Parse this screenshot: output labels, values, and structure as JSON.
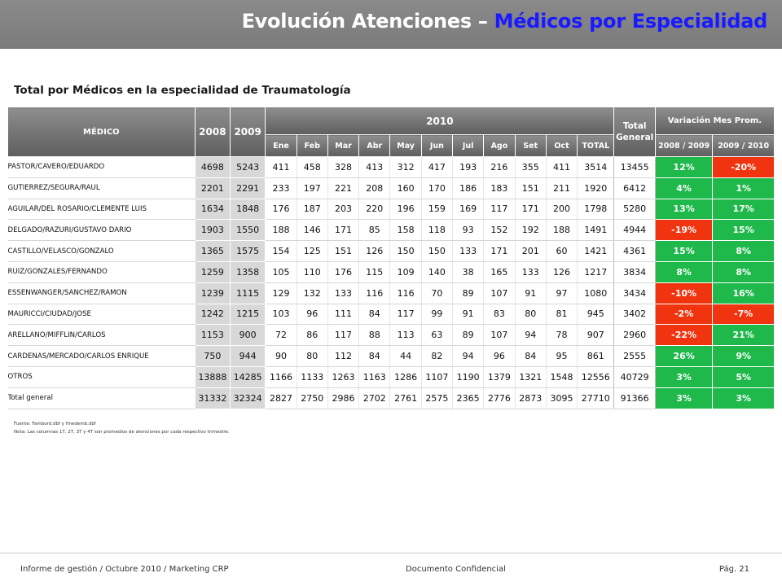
{
  "header": {
    "title_part1": "Evolución Atenciones – ",
    "title_part2": "Médicos por Especialidad"
  },
  "subtitle": "Total por Médicos en la especialidad de Traumatología",
  "table": {
    "col_medico": "MÉDICO",
    "col_2008": "2008",
    "col_2009": "2009",
    "col_2010": "2010",
    "col_total_general": "Total General",
    "col_variacion": "Variación Mes Prom.",
    "col_var1": "2008 / 2009",
    "col_var2": "2009 / 2010",
    "col_total": "TOTAL",
    "months": [
      "Ene",
      "Feb",
      "Mar",
      "Abr",
      "May",
      "Jun",
      "Jul",
      "Ago",
      "Set",
      "Oct"
    ],
    "rows": [
      {
        "medico": "PASTOR/CAVERO/EDUARDO",
        "y2008": "4698",
        "y2009": "5243",
        "months": [
          "411",
          "458",
          "328",
          "413",
          "312",
          "417",
          "193",
          "216",
          "355",
          "411"
        ],
        "total": "3514",
        "total_general": "13455",
        "var1": "12%",
        "var2": "-20%"
      },
      {
        "medico": "GUTIERREZ/SEGURA/RAUL",
        "y2008": "2201",
        "y2009": "2291",
        "months": [
          "233",
          "197",
          "221",
          "208",
          "160",
          "170",
          "186",
          "183",
          "151",
          "211"
        ],
        "total": "1920",
        "total_general": "6412",
        "var1": "4%",
        "var2": "1%"
      },
      {
        "medico": "AGUILAR/DEL ROSARIO/CLEMENTE LUIS",
        "y2008": "1634",
        "y2009": "1848",
        "months": [
          "176",
          "187",
          "203",
          "220",
          "196",
          "159",
          "169",
          "117",
          "171",
          "200"
        ],
        "total": "1798",
        "total_general": "5280",
        "var1": "13%",
        "var2": "17%"
      },
      {
        "medico": "DELGADO/RAZURI/GUSTAVO DARIO",
        "y2008": "1903",
        "y2009": "1550",
        "months": [
          "188",
          "146",
          "171",
          "85",
          "158",
          "118",
          "93",
          "152",
          "192",
          "188"
        ],
        "total": "1491",
        "total_general": "4944",
        "var1": "-19%",
        "var2": "15%"
      },
      {
        "medico": "CASTILLO/VELASCO/GONZALO",
        "y2008": "1365",
        "y2009": "1575",
        "months": [
          "154",
          "125",
          "151",
          "126",
          "150",
          "150",
          "133",
          "171",
          "201",
          "60"
        ],
        "total": "1421",
        "total_general": "4361",
        "var1": "15%",
        "var2": "8%"
      },
      {
        "medico": "RUIZ/GONZALES/FERNANDO",
        "y2008": "1259",
        "y2009": "1358",
        "months": [
          "105",
          "110",
          "176",
          "115",
          "109",
          "140",
          "38",
          "165",
          "133",
          "126"
        ],
        "total": "1217",
        "total_general": "3834",
        "var1": "8%",
        "var2": "8%"
      },
      {
        "medico": "ESSENWANGER/SANCHEZ/RAMON",
        "y2008": "1239",
        "y2009": "1115",
        "months": [
          "129",
          "132",
          "133",
          "116",
          "116",
          "70",
          "89",
          "107",
          "91",
          "97"
        ],
        "total": "1080",
        "total_general": "3434",
        "var1": "-10%",
        "var2": "16%"
      },
      {
        "medico": "MAURICCI/CIUDAD/JOSE",
        "y2008": "1242",
        "y2009": "1215",
        "months": [
          "103",
          "96",
          "111",
          "84",
          "117",
          "99",
          "91",
          "83",
          "80",
          "81"
        ],
        "total": "945",
        "total_general": "3402",
        "var1": "-2%",
        "var2": "-7%"
      },
      {
        "medico": "ARELLANO/MIFFLIN/CARLOS",
        "y2008": "1153",
        "y2009": "900",
        "months": [
          "72",
          "86",
          "117",
          "88",
          "113",
          "63",
          "89",
          "107",
          "94",
          "78"
        ],
        "total": "907",
        "total_general": "2960",
        "var1": "-22%",
        "var2": "21%"
      },
      {
        "medico": "CARDENAS/MERCADO/CARLOS ENRIQUE",
        "y2008": "750",
        "y2009": "944",
        "months": [
          "90",
          "80",
          "112",
          "84",
          "44",
          "82",
          "94",
          "96",
          "84",
          "95"
        ],
        "total": "861",
        "total_general": "2555",
        "var1": "26%",
        "var2": "9%"
      },
      {
        "medico": "OTROS",
        "y2008": "13888",
        "y2009": "14285",
        "months": [
          "1166",
          "1133",
          "1263",
          "1163",
          "1286",
          "1107",
          "1190",
          "1379",
          "1321",
          "1548"
        ],
        "total": "12556",
        "total_general": "40729",
        "var1": "3%",
        "var2": "5%"
      },
      {
        "medico": "Total general",
        "y2008": "31332",
        "y2009": "32324",
        "months": [
          "2827",
          "2750",
          "2986",
          "2702",
          "2761",
          "2575",
          "2365",
          "2776",
          "2873",
          "3095"
        ],
        "total": "27710",
        "total_general": "91366",
        "var1": "3%",
        "var2": "3%"
      }
    ]
  },
  "notes": {
    "fuente": "Fuente: Fambord.dbf   y fmedemb.dbf",
    "nota": "Nota: Las columnas 1T, 2T, 3T y 4T  son promedios de atenciones por cada respectivo trimestre."
  },
  "footer": {
    "left": "Informe de gestión / Octubre 2010 / Marketing CRP",
    "center": "Documento Confidencial",
    "right": "Pág. 21"
  },
  "colors": {
    "positive": "#1eb84b",
    "negative": "#f0340f",
    "title_accent": "#1a1aff",
    "header_bg": "#7b7b7b"
  }
}
